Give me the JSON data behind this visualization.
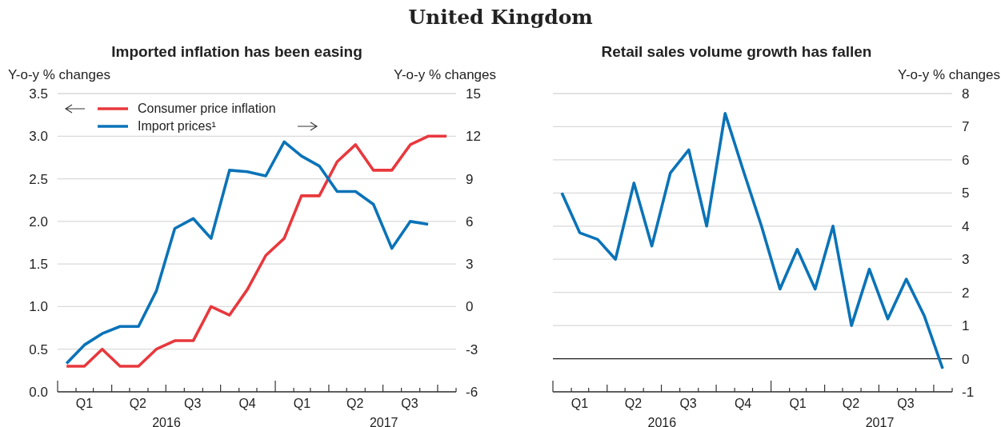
{
  "chart_data": [
    {
      "type": "line",
      "title": "United Kingdom",
      "subtitle": "Imported inflation has been easing",
      "ylabel": "Y-o-y % changes",
      "y2label": "Y-o-y % changes",
      "x": [
        "2016-01-16",
        "2016-02-15",
        "2016-03-16",
        "2016-04-15",
        "2016-05-16",
        "2016-06-15",
        "2016-07-16",
        "2016-08-16",
        "2016-09-15",
        "2016-10-16",
        "2016-11-15",
        "2016-12-16",
        "2017-01-16",
        "2017-02-14",
        "2017-03-16",
        "2017-04-15",
        "2017-05-16",
        "2017-06-15",
        "2017-07-16",
        "2017-08-16",
        "2017-09-15",
        "2017-10-16"
      ],
      "series": [
        {
          "name": "Consumer price inflation",
          "color": "#e8383d",
          "values": [
            0.3,
            0.3,
            0.5,
            0.3,
            0.3,
            0.5,
            0.6,
            0.6,
            1.0,
            0.9,
            1.2,
            1.6,
            1.8,
            2.3,
            2.3,
            2.7,
            2.9,
            2.6,
            2.6,
            2.9,
            3.0,
            3.0
          ]
        },
        {
          "name": "Import prices¹",
          "color": "#0a73b8",
          "axis": "y2",
          "values": [
            -4.0,
            -2.7,
            -1.9,
            -1.4,
            -1.4,
            1.1,
            5.5,
            6.2,
            4.8,
            9.6,
            9.5,
            9.2,
            11.6,
            10.6,
            9.9,
            8.1,
            8.1,
            7.2,
            4.1,
            6.0,
            5.8,
            null
          ]
        }
      ],
      "xlim": [
        "2016-01",
        "2017-11"
      ],
      "xticks": [
        {
          "value": "2016-01",
          "label": null
        },
        {
          "value": "2016-02",
          "label": null
        },
        {
          "value": "2016-03",
          "label": null
        },
        {
          "value": "2016-04",
          "label": null
        },
        {
          "value": "2016-05",
          "label": null
        },
        {
          "value": "2016-06",
          "label": null
        },
        {
          "value": "2016-07",
          "label": null
        },
        {
          "value": "2016-08",
          "label": null
        },
        {
          "value": "2016-09",
          "label": null
        },
        {
          "value": "2016-10",
          "label": null
        },
        {
          "value": "2016-11",
          "label": null
        },
        {
          "value": "2016-12",
          "label": null
        },
        {
          "value": "2017-01",
          "label": null
        },
        {
          "value": "2017-02",
          "label": null
        },
        {
          "value": "2017-03",
          "label": null
        },
        {
          "value": "2017-04",
          "label": null
        },
        {
          "value": "2017-05",
          "label": null
        },
        {
          "value": "2017-06",
          "label": null
        },
        {
          "value": "2017-07",
          "label": null
        },
        {
          "value": "2017-08",
          "label": null
        },
        {
          "value": "2017-09",
          "label": null
        },
        {
          "value": "2017-10",
          "label": null
        },
        {
          "value": "2017-11",
          "label": null
        },
        {
          "value": "2016-02-15",
          "label": "Q1"
        },
        {
          "value": "2016-05-15",
          "label": "Q2"
        },
        {
          "value": "2016-08-15",
          "label": "Q3"
        },
        {
          "value": "2016-11-15",
          "label": "Q4"
        },
        {
          "value": "2017-02-15",
          "label": "Q1"
        },
        {
          "value": "2017-05-15",
          "label": "Q2"
        },
        {
          "value": "2017-08-15",
          "label": "Q3"
        }
      ],
      "ylim": [
        0,
        3.5
      ],
      "yticks": [
        {
          "value": 0,
          "label": "0.0"
        },
        0.5,
        {
          "value": 1,
          "label": "1.0"
        },
        1.5,
        {
          "value": 2,
          "label": "2.0"
        },
        2.5,
        {
          "value": 3,
          "label": "3.0"
        },
        3.5
      ],
      "y2lim": [
        -6,
        15
      ],
      "y2ticks": [
        -6,
        -3,
        0,
        3,
        6,
        9,
        12,
        15
      ],
      "annotations": [
        "2016",
        "2017"
      ],
      "grid": "y",
      "legend": "top left",
      "line_style": "solid",
      "marker": "none"
    },
    {
      "type": "line",
      "subtitle": "Retail sales volume growth has fallen",
      "y2label": "Y-o-y % changes",
      "x": [
        "2016-01-16",
        "2016-02-15",
        "2016-03-16",
        "2016-04-15",
        "2016-05-16",
        "2016-06-15",
        "2016-07-16",
        "2016-08-16",
        "2016-09-15",
        "2016-10-16",
        "2016-11-15",
        "2016-12-16",
        "2017-01-16",
        "2017-02-14",
        "2017-03-16",
        "2017-04-15",
        "2017-05-16",
        "2017-06-15",
        "2017-07-16",
        "2017-08-16",
        "2017-09-15",
        "2017-10-16"
      ],
      "series": [
        {
          "color": "#0a73b8",
          "axis": "y2",
          "values": [
            5.0,
            3.8,
            3.6,
            3.0,
            5.3,
            3.4,
            5.6,
            6.3,
            4.0,
            7.4,
            5.7,
            4.0,
            2.1,
            3.3,
            2.1,
            4.0,
            1.0,
            2.7,
            1.2,
            2.4,
            1.3,
            -0.3
          ]
        }
      ],
      "xlim": [
        "2016-01",
        "2017-11"
      ],
      "xticks": [
        {
          "value": "2016-01",
          "label": null
        },
        {
          "value": "2016-02",
          "label": null
        },
        {
          "value": "2016-03",
          "label": null
        },
        {
          "value": "2016-04",
          "label": null
        },
        {
          "value": "2016-05",
          "label": null
        },
        {
          "value": "2016-06",
          "label": null
        },
        {
          "value": "2016-07",
          "label": null
        },
        {
          "value": "2016-08",
          "label": null
        },
        {
          "value": "2016-09",
          "label": null
        },
        {
          "value": "2016-10",
          "label": null
        },
        {
          "value": "2016-11",
          "label": null
        },
        {
          "value": "2016-12",
          "label": null
        },
        {
          "value": "2017-01",
          "label": null
        },
        {
          "value": "2017-02",
          "label": null
        },
        {
          "value": "2017-03",
          "label": null
        },
        {
          "value": "2017-04",
          "label": null
        },
        {
          "value": "2017-05",
          "label": null
        },
        {
          "value": "2017-06",
          "label": null
        },
        {
          "value": "2017-07",
          "label": null
        },
        {
          "value": "2017-08",
          "label": null
        },
        {
          "value": "2017-09",
          "label": null
        },
        {
          "value": "2017-10",
          "label": null
        },
        {
          "value": "2017-11",
          "label": null
        },
        {
          "value": "2016-02-15",
          "label": "Q1"
        },
        {
          "value": "2016-05-15",
          "label": "Q2"
        },
        {
          "value": "2016-08-15",
          "label": "Q3"
        },
        {
          "value": "2016-11-15",
          "label": "Q4"
        },
        {
          "value": "2017-02-15",
          "label": "Q1"
        },
        {
          "value": "2017-05-15",
          "label": "Q2"
        },
        {
          "value": "2017-08-15",
          "label": "Q3"
        }
      ],
      "y2lim": [
        -1,
        8
      ],
      "y2ticks": [
        -1,
        0,
        1,
        2,
        3,
        4,
        5,
        6,
        7,
        8
      ],
      "ref_lines": [
        {
          "axis": "y2",
          "value": 0,
          "color": "#222222"
        }
      ],
      "annotations": [
        "2016",
        "2017"
      ],
      "grid": "y",
      "legend": false,
      "line_style": "solid",
      "marker": "none"
    }
  ]
}
